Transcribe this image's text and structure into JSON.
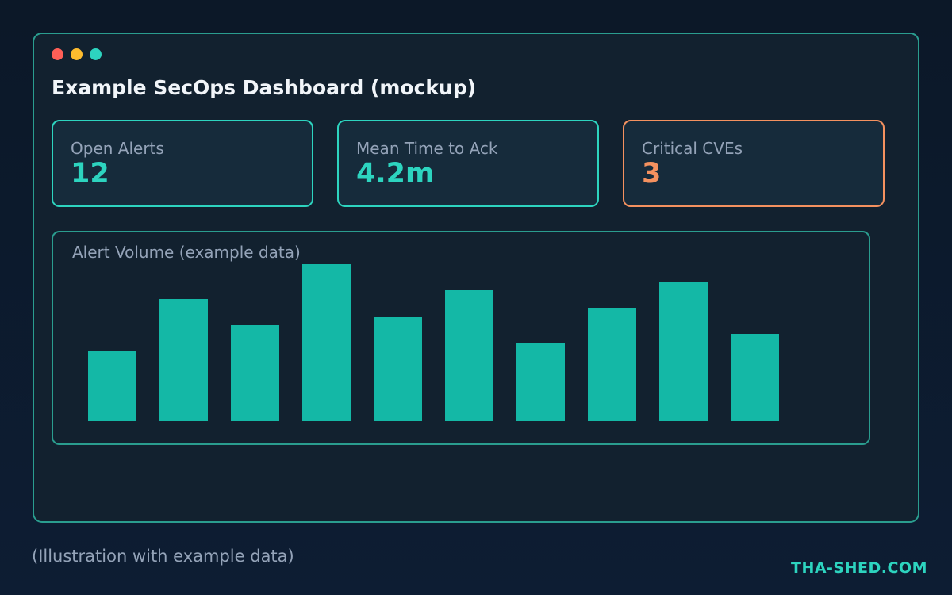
{
  "window": {
    "title": "Example SecOps Dashboard (mockup)",
    "controls": [
      {
        "name": "close",
        "color": "#ff5f57"
      },
      {
        "name": "minimize",
        "color": "#febc2e"
      },
      {
        "name": "maximize",
        "color": "#2dd4bf"
      }
    ]
  },
  "kpis": [
    {
      "label": "Open Alerts",
      "value": "12",
      "accent": "#2dd4bf"
    },
    {
      "label": "Mean Time to Ack",
      "value": "4.2m",
      "accent": "#2dd4bf"
    },
    {
      "label": "Critical CVEs",
      "value": "3",
      "accent": "#f4915f"
    }
  ],
  "chart_data": {
    "type": "bar",
    "title": "Alert Volume (example data)",
    "values": [
      40,
      70,
      55,
      90,
      60,
      75,
      45,
      65,
      80,
      50
    ],
    "ylim": [
      0,
      90
    ],
    "bar_color": "#14b8a6",
    "grid": false,
    "legend": "none"
  },
  "footer": {
    "caption": "(Illustration with example data)",
    "brand": "THA-SHED.COM"
  }
}
